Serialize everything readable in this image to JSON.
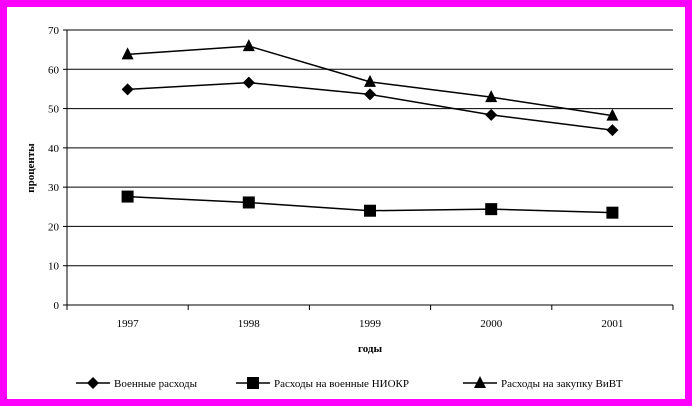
{
  "chart_data": {
    "type": "line",
    "title": "",
    "xlabel": "годы",
    "ylabel": "проценты",
    "categories": [
      "1997",
      "1998",
      "1999",
      "2000",
      "2001"
    ],
    "ylim": [
      0,
      70
    ],
    "yticks": [
      0,
      10,
      20,
      30,
      40,
      50,
      60,
      70
    ],
    "grid": true,
    "legend_position": "bottom",
    "series": [
      {
        "name": "Военные расходы",
        "marker": "diamond",
        "values": [
          54.9,
          56.6,
          53.6,
          48.4,
          44.5
        ]
      },
      {
        "name": "Расходы на военные НИОКР",
        "marker": "square",
        "values": [
          27.6,
          26.1,
          24.0,
          24.4,
          23.5
        ]
      },
      {
        "name": "Расходы на закупку ВиВТ",
        "marker": "triangle",
        "values": [
          63.8,
          65.9,
          56.8,
          52.9,
          48.2
        ]
      }
    ],
    "colors": {
      "border": "#ff00ff",
      "line": "#000000"
    }
  }
}
